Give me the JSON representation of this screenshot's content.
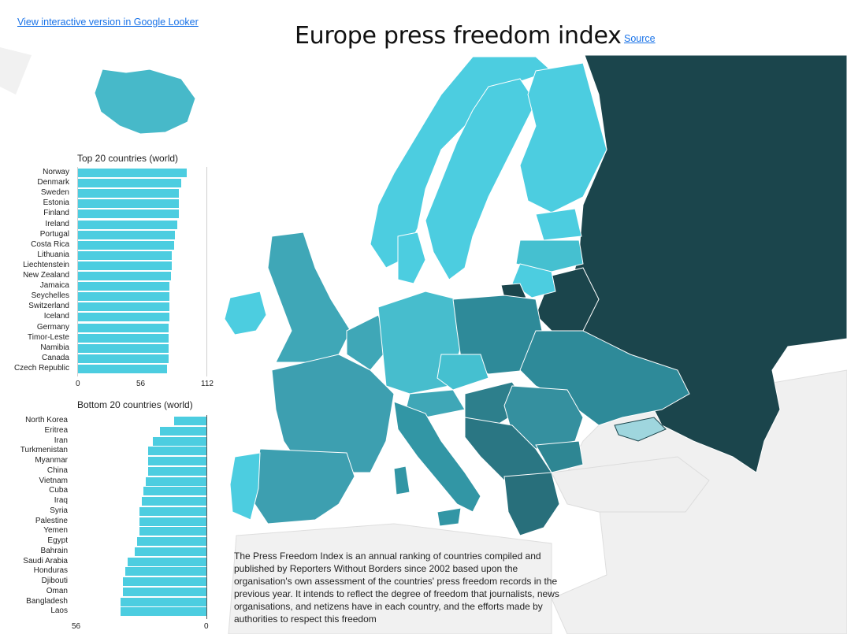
{
  "header": {
    "looker_link": "View interactive version in Google Looker",
    "title": "Europe press freedom index",
    "source_link": "Source"
  },
  "colors": {
    "accent_link": "#1a73e8",
    "bar": "#4ccde0",
    "scale_high_freedom": "#4ccde0",
    "scale_mid": "#2e8a99",
    "scale_low_freedom": "#1b454c",
    "no_data": "#f0f0f0"
  },
  "top_chart": {
    "title": "Top 20 countries (world)",
    "ticks": [
      "0",
      "56",
      "112"
    ]
  },
  "bottom_chart": {
    "title": "Bottom 20 countries (world)",
    "ticks": [
      "56",
      "0"
    ]
  },
  "description": "The Press Freedom Index is an annual ranking of countries compiled and published by Reporters Without Borders since 2002 based upon the organisation's own assessment of the countries' press freedom records in the previous year. It intends to reflect the degree of freedom that journalists, news organisations, and netizens have in each country, and the efforts made by authorities to respect this freedom",
  "chart_data": [
    {
      "type": "bar",
      "title": "Top 20 countries (world)",
      "xlim": [
        0,
        112
      ],
      "categories": [
        "Norway",
        "Denmark",
        "Sweden",
        "Estonia",
        "Finland",
        "Ireland",
        "Portugal",
        "Costa Rica",
        "Lithuania",
        "Liechtenstein",
        "New Zealand",
        "Jamaica",
        "Seychelles",
        "Switzerland",
        "Iceland",
        "Germany",
        "Timor-Leste",
        "Namibia",
        "Canada",
        "Czech Republic"
      ],
      "values": [
        95,
        90,
        88,
        88,
        88,
        87,
        85,
        84,
        82,
        82,
        81,
        80,
        80,
        80,
        80,
        79,
        79,
        79,
        79,
        78
      ]
    },
    {
      "type": "bar",
      "title": "Bottom 20 countries (world)",
      "xlim": [
        56,
        0
      ],
      "categories": [
        "North Korea",
        "Eritrea",
        "Iran",
        "Turkmenistan",
        "Myanmar",
        "China",
        "Vietnam",
        "Cuba",
        "Iraq",
        "Syria",
        "Palestine",
        "Yemen",
        "Egypt",
        "Bahrain",
        "Saudi Arabia",
        "Honduras",
        "Djibouti",
        "Oman",
        "Bangladesh",
        "Laos"
      ],
      "values": [
        14,
        20,
        23,
        25,
        25,
        25,
        26,
        27,
        28,
        29,
        29,
        29,
        30,
        31,
        34,
        35,
        36,
        36,
        37,
        37
      ]
    }
  ],
  "map": {
    "countries": [
      {
        "name": "Iceland",
        "level": "high"
      },
      {
        "name": "Norway",
        "level": "high"
      },
      {
        "name": "Sweden",
        "level": "high"
      },
      {
        "name": "Finland",
        "level": "high"
      },
      {
        "name": "Denmark",
        "level": "high"
      },
      {
        "name": "Estonia",
        "level": "high"
      },
      {
        "name": "Ireland",
        "level": "high"
      },
      {
        "name": "Portugal",
        "level": "high"
      },
      {
        "name": "Lithuania",
        "level": "high"
      },
      {
        "name": "Latvia",
        "level": "high"
      },
      {
        "name": "United Kingdom",
        "level": "mid"
      },
      {
        "name": "Netherlands",
        "level": "mid"
      },
      {
        "name": "Germany",
        "level": "high"
      },
      {
        "name": "Czech Republic",
        "level": "high"
      },
      {
        "name": "France",
        "level": "mid"
      },
      {
        "name": "Spain",
        "level": "mid"
      },
      {
        "name": "Italy",
        "level": "mid"
      },
      {
        "name": "Poland",
        "level": "mid"
      },
      {
        "name": "Ukraine",
        "level": "mid"
      },
      {
        "name": "Romania",
        "level": "mid"
      },
      {
        "name": "Balkans",
        "level": "mid"
      },
      {
        "name": "Greece",
        "level": "low-mid"
      },
      {
        "name": "Russia",
        "level": "low"
      },
      {
        "name": "Belarus",
        "level": "low"
      },
      {
        "name": "Turkey",
        "level": "no-data"
      }
    ]
  }
}
